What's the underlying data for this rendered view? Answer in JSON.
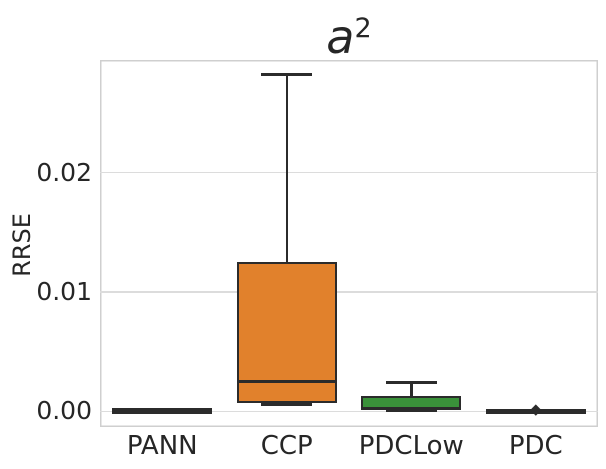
{
  "figure": {
    "title": {
      "base": "a",
      "exponent": "2"
    }
  },
  "chart_data": {
    "type": "box",
    "title": "a^2",
    "xlabel": "",
    "ylabel": "RRSE",
    "categories": [
      "PANN",
      "CCP",
      "PDCLow",
      "PDC"
    ],
    "grid": true,
    "legend": false,
    "ylim": [
      -0.0013,
      0.0294
    ],
    "yticks": [
      {
        "label": "0.00",
        "value": 0.0
      },
      {
        "label": "0.01",
        "value": 0.01
      },
      {
        "label": "0.02",
        "value": 0.02
      }
    ],
    "boxes": [
      {
        "category": "PANN",
        "color": "#3274A1",
        "whislo": 5e-05,
        "q1": 8e-05,
        "med": 0.0001,
        "q3": 0.00012,
        "whishi": 0.00015,
        "fliers": []
      },
      {
        "category": "CCP",
        "color": "#E1812C",
        "whislo": 0.0006,
        "q1": 0.0008,
        "med": 0.0025,
        "q3": 0.0124,
        "whishi": 0.0282,
        "fliers": []
      },
      {
        "category": "PDCLow",
        "color": "#3A923A",
        "whislo": 5e-05,
        "q1": 0.0002,
        "med": 0.0002,
        "q3": 0.0012,
        "whishi": 0.0024,
        "fliers": []
      },
      {
        "category": "PDC",
        "color": "#C03D3E",
        "whislo": 5e-05,
        "q1": 6e-05,
        "med": 8e-05,
        "q3": 0.0001,
        "whishi": 0.0001,
        "fliers": [
          0.0001
        ]
      }
    ],
    "colors": {
      "edge": "#2b2b2b",
      "grid": "#dcdcdc",
      "spine": "#cfcfcf",
      "text": "#262626"
    }
  }
}
